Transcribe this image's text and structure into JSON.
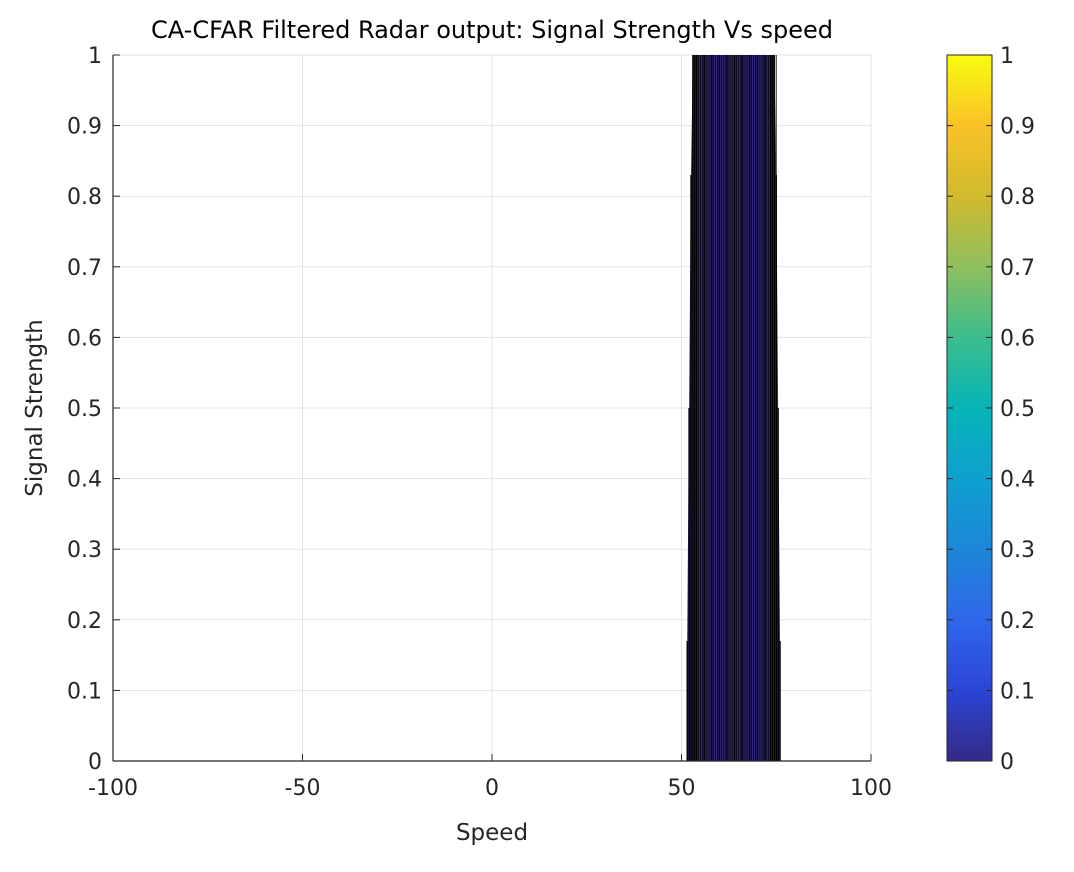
{
  "chart_data": {
    "type": "surface-side-view",
    "title": "CA-CFAR Filtered Radar output: Signal Strength Vs speed",
    "xlabel": "Speed",
    "ylabel": "Signal Strength",
    "xlim": [
      -100,
      100
    ],
    "ylim": [
      0,
      1
    ],
    "xticks": [
      "-100",
      "-50",
      "0",
      "50",
      "100"
    ],
    "yticks": [
      "0",
      "0.1",
      "0.2",
      "0.3",
      "0.4",
      "0.5",
      "0.6",
      "0.7",
      "0.8",
      "0.9",
      "1"
    ],
    "grid": true,
    "colormap": "parula",
    "colorbar": {
      "limits": [
        0,
        1
      ],
      "ticks": [
        "0",
        "0.1",
        "0.2",
        "0.3",
        "0.4",
        "0.5",
        "0.6",
        "0.7",
        "0.8",
        "0.9",
        "1"
      ]
    },
    "x": [
      51.5,
      52,
      52.5,
      53,
      53.5,
      54,
      56,
      58,
      60,
      62,
      64,
      66,
      68,
      70,
      72,
      73.5,
      74,
      74.5,
      75,
      75.5,
      76
    ],
    "values": [
      0.17,
      0.5,
      0.83,
      1,
      1,
      1,
      1,
      1,
      1,
      1,
      1,
      1,
      1,
      1,
      1,
      1,
      1,
      1,
      0.83,
      0.5,
      0.17
    ],
    "face_color": "#352a87",
    "edge_color": "#000000"
  }
}
